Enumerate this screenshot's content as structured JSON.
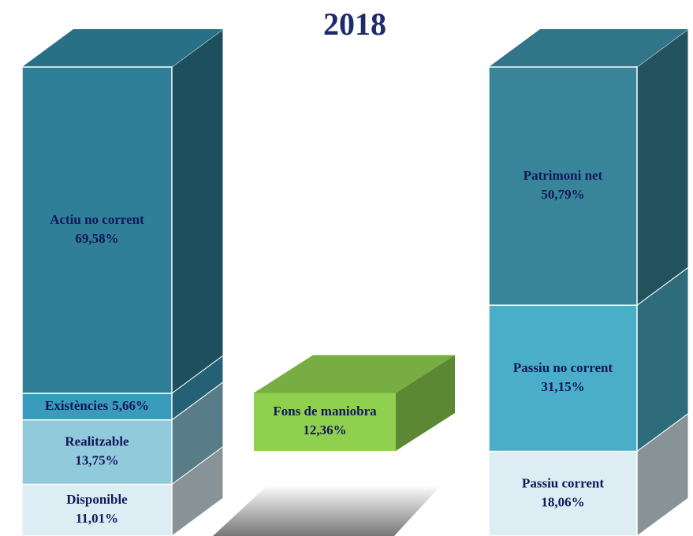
{
  "chart_data": {
    "type": "stacked_bar_3d",
    "title": "2018",
    "stacks": [
      {
        "segments": [
          {
            "name": "Disponible",
            "value": 11.01,
            "value_label": "11,01%",
            "color": "#dcedf4"
          },
          {
            "name": "Realitzable",
            "value": 13.75,
            "value_label": "13,75%",
            "color": "#90cadb"
          },
          {
            "name": "Existències",
            "value": 5.66,
            "value_label": "5,66%",
            "color": "#3a9cbc"
          },
          {
            "name": "Actiu no corrent",
            "value": 69.58,
            "value_label": "69,58%",
            "color": "#2e7f97"
          }
        ]
      },
      {
        "segments": [
          {
            "name": "Passiu corrent",
            "value": 18.06,
            "value_label": "18,06%",
            "color": "#dcedf4"
          },
          {
            "name": "Passiu no corrent",
            "value": 31.15,
            "value_label": "31,15%",
            "color": "#4aaec8"
          },
          {
            "name": "Patrimoni net",
            "value": 50.79,
            "value_label": "50,79%",
            "color": "#38859a"
          }
        ]
      }
    ],
    "fund": {
      "name": "Fons de maniobra",
      "value": 12.36,
      "value_label": "12,36%",
      "color": "#8fd14f"
    }
  }
}
